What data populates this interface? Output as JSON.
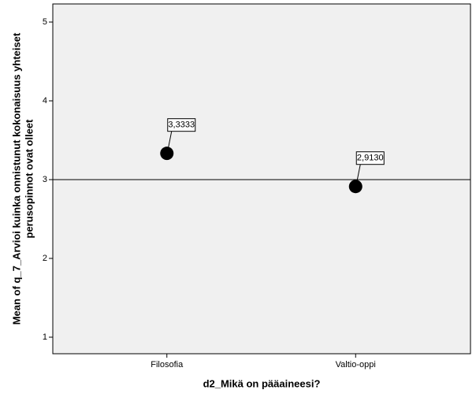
{
  "chart_data": {
    "type": "dot",
    "x_label": "d2_Mikä on pääaineesi?",
    "y_label": [
      "Mean of q_7_Arvioi kuinka onnistunut kokonaisuus yhteiset",
      "perusopinnot ovat olleet"
    ],
    "categories": [
      "Filosofia",
      "Valtio-oppi"
    ],
    "values": [
      3.3333,
      2.913
    ],
    "value_labels": [
      "3,3333",
      "2,9130"
    ],
    "color": "#000000",
    "reference_line": 3,
    "ylim": [
      0.79,
      5.23
    ],
    "yticks": [
      1,
      2,
      3,
      4,
      5
    ]
  }
}
